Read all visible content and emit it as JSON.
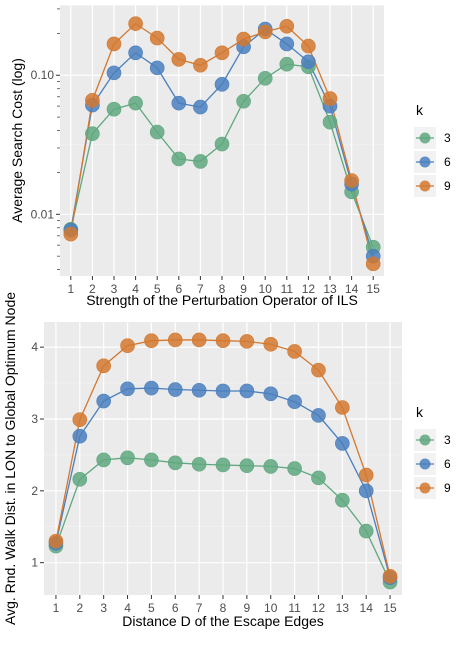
{
  "chart_data": [
    {
      "type": "line",
      "xlabel": "Strength of the Perturbation Operator of ILS",
      "ylabel": "Average Search Cost (log)",
      "yscale": "log",
      "x": [
        1,
        2,
        3,
        4,
        5,
        6,
        7,
        8,
        9,
        10,
        11,
        12,
        13,
        14,
        15
      ],
      "x_ticks": [
        "1",
        "2",
        "3",
        "4",
        "5",
        "6",
        "7",
        "8",
        "9",
        "10",
        "11",
        "12",
        "13",
        "14",
        "15"
      ],
      "y_ticks": [
        0.01,
        0.1
      ],
      "y_tick_labels": [
        "0.01",
        "0.10"
      ],
      "ylim": [
        0.0036,
        0.32
      ],
      "grid": true,
      "legend": {
        "title": "k",
        "position": "right"
      },
      "series": [
        {
          "name": "3",
          "color": "#5fa87f",
          "values": [
            0.0078,
            0.038,
            0.057,
            0.063,
            0.039,
            0.025,
            0.024,
            0.032,
            0.065,
            0.095,
            0.12,
            0.115,
            0.046,
            0.0145,
            0.0058
          ]
        },
        {
          "name": "6",
          "color": "#4a7fbe",
          "values": [
            0.0077,
            0.061,
            0.104,
            0.145,
            0.113,
            0.063,
            0.059,
            0.086,
            0.16,
            0.215,
            0.168,
            0.125,
            0.06,
            0.0165,
            0.005
          ]
        },
        {
          "name": "9",
          "color": "#d3782f",
          "values": [
            0.0072,
            0.066,
            0.168,
            0.235,
            0.185,
            0.13,
            0.118,
            0.145,
            0.182,
            0.205,
            0.225,
            0.162,
            0.068,
            0.0175,
            0.0044
          ]
        }
      ]
    },
    {
      "type": "line",
      "xlabel": "Distance D of the Escape Edges",
      "ylabel": "Avg. Rnd. Walk Dist. in LON to Global Optimum Node",
      "x": [
        1,
        2,
        3,
        4,
        5,
        6,
        7,
        8,
        9,
        10,
        11,
        12,
        13,
        14,
        15
      ],
      "x_ticks": [
        "1",
        "2",
        "3",
        "4",
        "5",
        "6",
        "7",
        "8",
        "9",
        "10",
        "11",
        "12",
        "13",
        "14",
        "15"
      ],
      "y_ticks": [
        1,
        2,
        3,
        4
      ],
      "y_tick_labels": [
        "1",
        "2",
        "3",
        "4"
      ],
      "ylim": [
        0.55,
        4.35
      ],
      "grid": true,
      "legend": {
        "title": "k",
        "position": "right"
      },
      "series": [
        {
          "name": "3",
          "color": "#5fa87f",
          "values": [
            1.23,
            2.16,
            2.43,
            2.46,
            2.43,
            2.39,
            2.37,
            2.36,
            2.35,
            2.34,
            2.31,
            2.18,
            1.87,
            1.44,
            0.73
          ]
        },
        {
          "name": "6",
          "color": "#4a7fbe",
          "values": [
            1.27,
            2.76,
            3.25,
            3.42,
            3.43,
            3.41,
            3.4,
            3.39,
            3.39,
            3.35,
            3.24,
            3.05,
            2.66,
            2.0,
            0.79
          ]
        },
        {
          "name": "9",
          "color": "#d3782f",
          "values": [
            1.3,
            2.99,
            3.74,
            4.02,
            4.09,
            4.1,
            4.1,
            4.09,
            4.08,
            4.04,
            3.94,
            3.68,
            3.16,
            2.22,
            0.81
          ]
        }
      ]
    }
  ]
}
